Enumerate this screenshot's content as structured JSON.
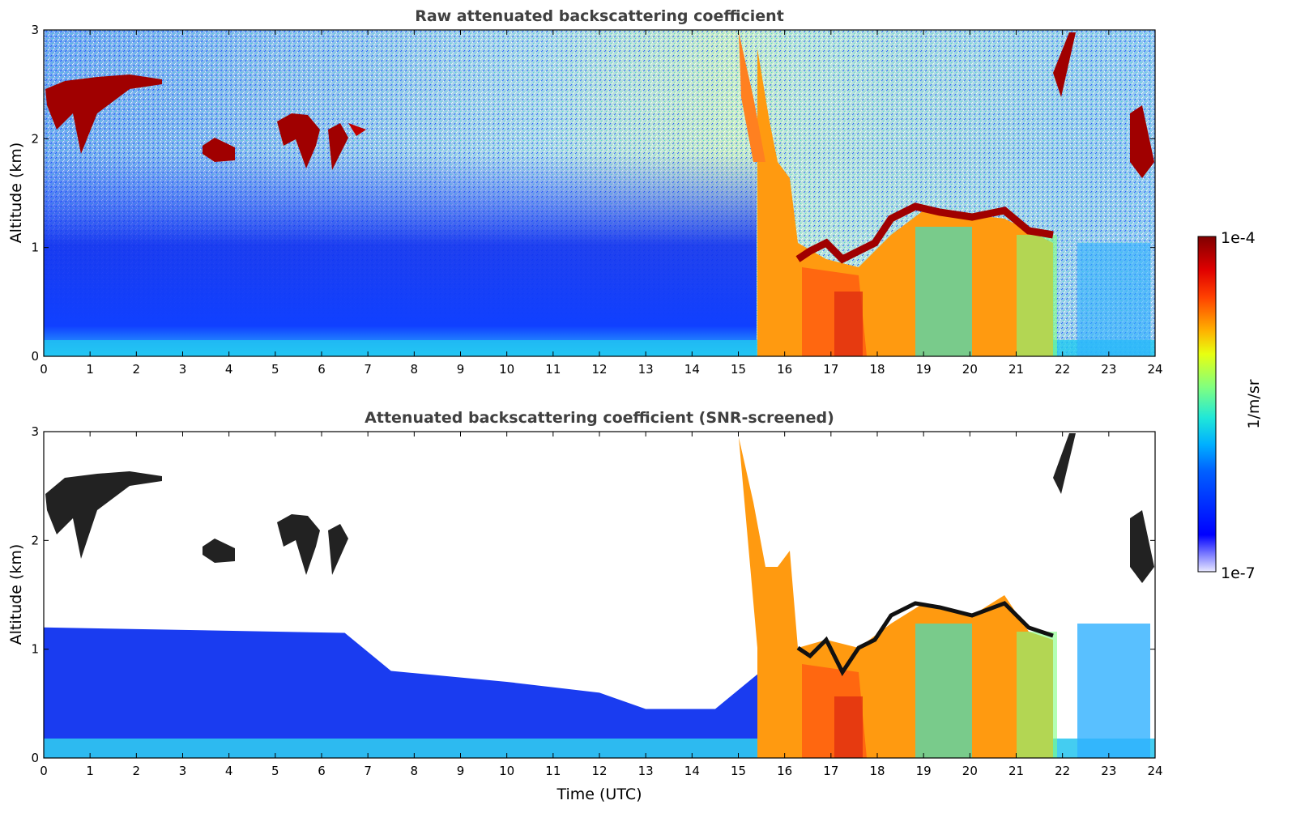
{
  "chart_data": [
    {
      "type": "heatmap",
      "title": "Raw attenuated backscattering coefficient",
      "xlabel": "",
      "ylabel": "Altitude (km)",
      "xlim": [
        0,
        24
      ],
      "ylim": [
        0,
        3
      ],
      "x_ticks": [
        "0",
        "1",
        "2",
        "3",
        "4",
        "5",
        "6",
        "7",
        "8",
        "9",
        "10",
        "11",
        "12",
        "13",
        "14",
        "15",
        "16",
        "17",
        "18",
        "19",
        "20",
        "21",
        "22",
        "23",
        "24"
      ],
      "y_ticks": [
        "0",
        "1",
        "2",
        "3"
      ],
      "features": [
        {
          "kind": "cloud",
          "time_start": 0.0,
          "time_end": 2.6,
          "alt_top": 2.6,
          "alt_bottom": 1.8
        },
        {
          "kind": "cloud",
          "time_start": 3.4,
          "time_end": 4.1,
          "alt_top": 2.0,
          "alt_bottom": 1.75
        },
        {
          "kind": "cloud",
          "time_start": 5.0,
          "time_end": 7.0,
          "alt_top": 2.3,
          "alt_bottom": 1.65
        },
        {
          "kind": "precipitation/aerosol",
          "time_start": 15.5,
          "time_end": 16.3,
          "alt_top": 2.9,
          "alt_bottom": 0.0
        },
        {
          "kind": "boundary-layer cloud top",
          "time_start": 16.3,
          "time_end": 21.8,
          "alt_top": 1.45,
          "alt_bottom": 0.6
        },
        {
          "kind": "cloud",
          "time_start": 21.7,
          "time_end": 22.2,
          "alt_top": 3.0,
          "alt_bottom": 2.3
        },
        {
          "kind": "cloud",
          "time_start": 23.3,
          "time_end": 24.0,
          "alt_top": 2.4,
          "alt_bottom": 1.6
        }
      ]
    },
    {
      "type": "heatmap",
      "title": "Attenuated backscattering coefficient (SNR-screened)",
      "xlabel": "Time (UTC)",
      "ylabel": "Altitude (km)",
      "xlim": [
        0,
        24
      ],
      "ylim": [
        0,
        3
      ],
      "x_ticks": [
        "0",
        "1",
        "2",
        "3",
        "4",
        "5",
        "6",
        "7",
        "8",
        "9",
        "10",
        "11",
        "12",
        "13",
        "14",
        "15",
        "16",
        "17",
        "18",
        "19",
        "20",
        "21",
        "22",
        "23",
        "24"
      ],
      "y_ticks": [
        "0",
        "1",
        "2",
        "3"
      ],
      "screened_boundary_alt_km": [
        {
          "time": 0.0,
          "alt": 1.2
        },
        {
          "time": 6.5,
          "alt": 1.15
        },
        {
          "time": 7.5,
          "alt": 0.8
        },
        {
          "time": 10.0,
          "alt": 0.7
        },
        {
          "time": 12.0,
          "alt": 0.6
        },
        {
          "time": 13.0,
          "alt": 0.45
        },
        {
          "time": 14.5,
          "alt": 0.45
        },
        {
          "time": 15.5,
          "alt": 0.8
        }
      ]
    }
  ],
  "colorbar": {
    "label": "1/m/sr",
    "max_label": "1e-4",
    "min_label": "1e-7",
    "vmin": 1e-07,
    "vmax": 0.0001,
    "scale": "log",
    "colormap": "jet"
  }
}
